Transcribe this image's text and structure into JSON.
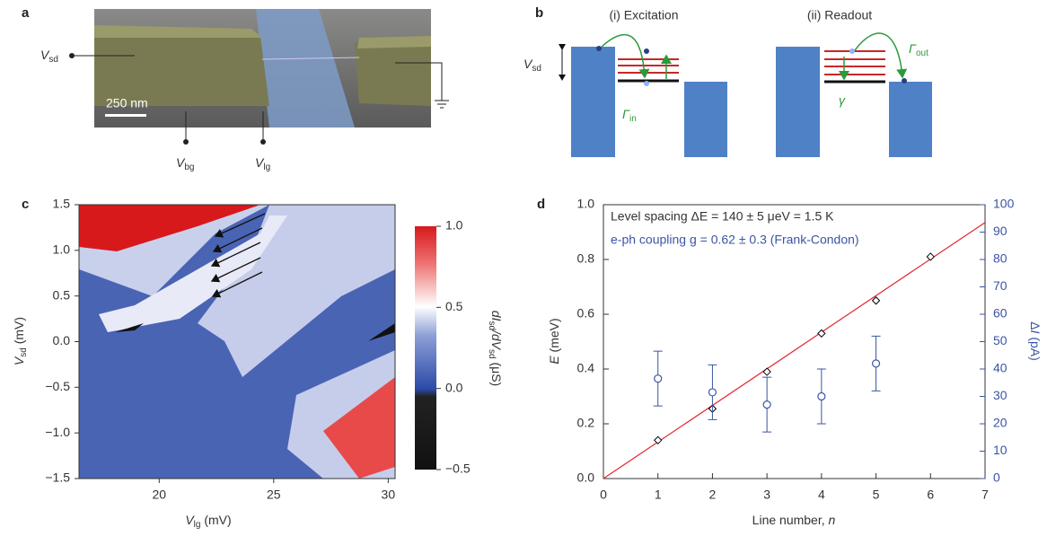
{
  "panels": {
    "a": {
      "label": "a",
      "scale_bar": "250 nm",
      "vsd": {
        "main": "V",
        "sub": "sd"
      },
      "vbg": {
        "main": "V",
        "sub": "bg"
      },
      "vlg": {
        "main": "V",
        "sub": "lg"
      }
    },
    "b": {
      "label": "b",
      "left_title": "(i) Excitation",
      "right_title": "(ii) Readout",
      "vsd": {
        "main": "V",
        "sub": "sd"
      },
      "gamma_in": {
        "main": "Γ",
        "sub": "in"
      },
      "gamma_out": {
        "main": "Γ",
        "sub": "out"
      },
      "gamma": "γ"
    }
  },
  "chart_data": [
    {
      "type": "heatmap",
      "panel_label": "c",
      "xlabel": {
        "main": "V",
        "sub": "lg",
        "rest": " (mV)"
      },
      "ylabel": {
        "main": "V",
        "sub": "sd",
        "rest": " (mV)"
      },
      "xlim": [
        16.5,
        30.3
      ],
      "ylim": [
        -1.5,
        1.5
      ],
      "xticks": [
        20,
        25,
        30
      ],
      "yticks": [
        {
          "value": -1.5,
          "label": "−1.5"
        },
        {
          "value": -1.0,
          "label": "−1.0"
        },
        {
          "value": -0.5,
          "label": "−0.5"
        },
        {
          "value": 0,
          "label": "0.0"
        },
        0.5,
        {
          "value": 1,
          "label": "1.0"
        },
        1.5
      ],
      "clim": [
        -0.5,
        1.0
      ],
      "cticks": [
        {
          "value": -0.5,
          "label": "−0.5"
        },
        {
          "value": 0,
          "label": "0.0"
        },
        0.5,
        {
          "value": 1,
          "label": "1.0"
        }
      ],
      "colorbar_label": {
        "a": "dI",
        "a_sub": "sd",
        "b": "/dV",
        "b_sub": "sd",
        "rest": " (μS)"
      }
    },
    {
      "type": "scatter",
      "panel_label": "d",
      "xlabel": {
        "text": "Line number, ",
        "var": "n"
      },
      "ylabel": {
        "var": "E",
        "text": " (meV)"
      },
      "y2label": {
        "pre": "Δ",
        "var": "I",
        "text": " (pA)"
      },
      "annotations": [
        "Level spacing ΔE = 140 ± 5 μeV = 1.5 K",
        "e-ph coupling g = 0.62 ± 0.3 (Frank-Condon)"
      ],
      "xlim": [
        0,
        7
      ],
      "xticks": [
        0,
        1,
        2,
        3,
        4,
        5,
        6,
        7
      ],
      "ylim": [
        0,
        1
      ],
      "yticks": [
        {
          "value": 0,
          "label": "0.0"
        },
        0.2,
        0.4,
        0.6,
        0.8,
        {
          "value": 1,
          "label": "1.0"
        }
      ],
      "y2lim": [
        0,
        100
      ],
      "y2ticks": [
        0,
        10,
        20,
        30,
        40,
        50,
        60,
        70,
        80,
        90,
        100
      ],
      "series": [
        {
          "color": "#000000",
          "x": [
            1,
            2,
            3,
            4,
            5,
            6
          ],
          "values": [
            0.14,
            0.255,
            0.39,
            0.53,
            0.65,
            0.81
          ]
        },
        {
          "color": "#3a55a4",
          "axis": "y2",
          "x": [
            1,
            2,
            3,
            4,
            5
          ],
          "values": [
            36.5,
            31.5,
            27,
            30,
            42
          ],
          "errors": [
            10,
            10,
            10,
            10,
            10
          ]
        }
      ],
      "fit": {
        "color": "#e3262b",
        "x": [
          0,
          7
        ],
        "values": [
          0,
          0.935
        ]
      }
    }
  ]
}
